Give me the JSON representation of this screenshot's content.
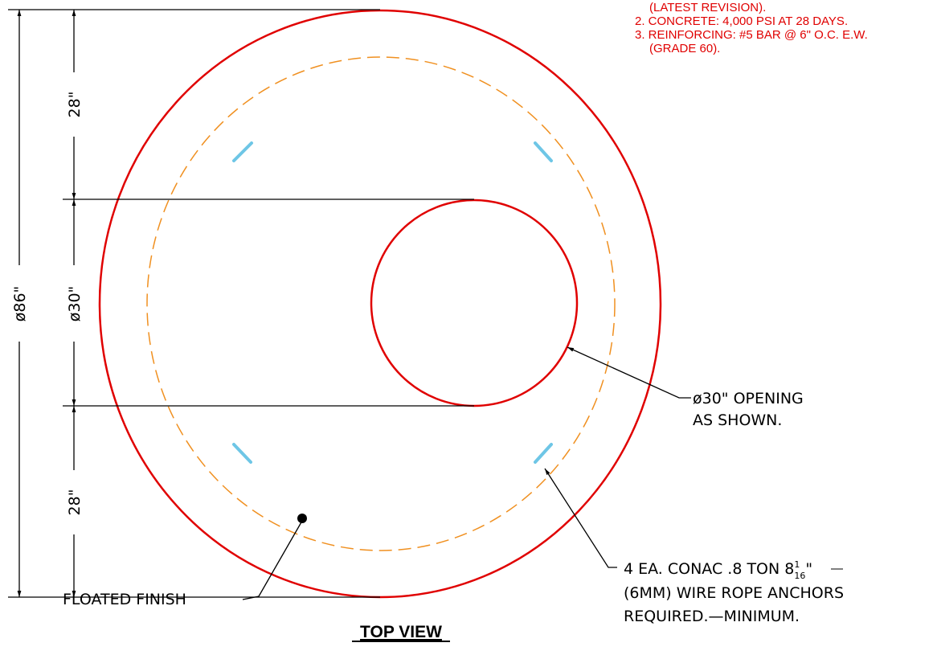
{
  "notes": [
    "(LATEST REVISION).",
    "2. CONCRETE: 4,000 PSI AT 28 DAYS.",
    "3. REINFORCING: #5 BAR @ 6\" O.C. E.W.",
    "(GRADE 60)."
  ],
  "dimensions": {
    "overall": "ø86\"",
    "top": "28\"",
    "opening": "ø30\"",
    "bottom": "28\""
  },
  "callouts": {
    "opening": [
      "ø30\" OPENING",
      "AS SHOWN."
    ],
    "anchors": {
      "line1": "4 EA. CONAC .8 TON 8",
      "frac_num": "1",
      "frac_den": "16",
      "line1_end": "\"",
      "line2": "(6MM) WIRE ROPE ANCHORS",
      "line3": "REQUIRED.—MINIMUM."
    },
    "finish": "FLOATED FINISH"
  },
  "view_title": "TOP VIEW"
}
